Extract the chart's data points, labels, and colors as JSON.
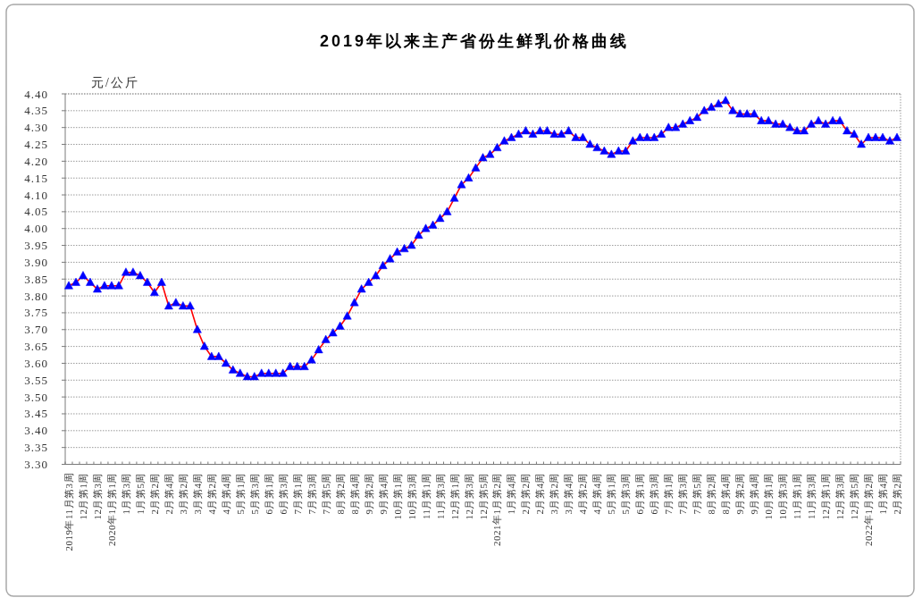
{
  "chart_data": {
    "type": "line",
    "title": "2019年以来主产省份生鲜乳价格曲线",
    "ylabel": "元/公斤",
    "categories": [
      "2019年11月第3周",
      null,
      "12月第1周",
      null,
      "12月第3周",
      null,
      "2020年1月第1周",
      null,
      "1月第3周",
      null,
      "1月第5周",
      null,
      "2月第2周",
      null,
      "2月第4周",
      null,
      "3月第2周",
      null,
      "3月第4周",
      null,
      "4月第2周",
      null,
      "4月第4周",
      null,
      "5月第1周",
      null,
      "5月第3周",
      null,
      "6月第1周",
      null,
      "6月第3周",
      null,
      "7月第1周",
      null,
      "7月第3周",
      null,
      "7月第5周",
      null,
      "8月第2周",
      null,
      "8月第4周",
      null,
      "9月第2周",
      null,
      "9月第4周",
      null,
      "10月第1周",
      null,
      "10月第3周",
      null,
      "11月第1周",
      null,
      "11月第3周",
      null,
      "12月第1周",
      null,
      "12月第3周",
      null,
      "12月第5周",
      null,
      "2021年1月第2周",
      null,
      "1月第4周",
      null,
      "2月第2周",
      null,
      "2月第4周",
      null,
      "3月第2周",
      null,
      "3月第4周",
      null,
      "4月第2周",
      null,
      "4月第4周",
      null,
      "5月第1周",
      null,
      "5月第3周",
      null,
      "6月第1周",
      null,
      "6月第3周",
      null,
      "7月第1周",
      null,
      "7月第3周",
      null,
      "7月第5周",
      null,
      "8月第2周",
      null,
      "8月第4周",
      null,
      "9月第2周",
      null,
      "9月第4周",
      null,
      "10月第1周",
      null,
      "10月第3周",
      null,
      "11月第1周",
      null,
      "11月第3周",
      null,
      "12月第1周",
      null,
      "12月第3周",
      null,
      "12月第5周",
      null,
      "2022年1月第2周",
      null,
      "1月第4周",
      null,
      "2月第2周"
    ],
    "series": [
      {
        "color": "#ff0000",
        "colors": [
          "#0000ff",
          "#0000ff",
          "#0000ff",
          "#0000ff",
          "#0000ff",
          "#0000ff",
          "#0000ff",
          "#0000ff",
          "#0000ff",
          "#0000ff",
          "#0000ff",
          "#0000ff",
          "#0000ff",
          "#0000ff",
          "#0000ff",
          "#0000ff",
          "#0000ff",
          "#0000ff",
          "#0000ff",
          "#0000ff",
          "#0000ff",
          "#0000ff",
          "#0000ff",
          "#0000ff",
          "#0000ff",
          "#0000ff",
          "#0000ff",
          "#0000ff",
          "#0000ff",
          "#0000ff",
          "#0000ff",
          "#0000ff",
          "#0000ff",
          "#0000ff",
          "#0000ff",
          "#0000ff",
          "#0000ff",
          "#0000ff",
          "#0000ff",
          "#0000ff",
          "#0000ff",
          "#0000ff",
          "#0000ff",
          "#0000ff",
          "#0000ff",
          "#0000ff",
          "#0000ff",
          "#0000ff",
          "#0000ff",
          "#0000ff",
          "#0000ff",
          "#0000ff",
          "#0000ff",
          "#0000ff",
          "#0000ff",
          "#0000ff",
          "#0000ff",
          "#0000ff",
          "#0000ff",
          "#0000ff",
          "#0000ff",
          "#0000ff",
          "#0000ff",
          "#0000ff",
          "#0000ff",
          "#0000ff",
          "#0000ff",
          "#0000ff",
          "#0000ff",
          "#0000ff",
          "#0000ff",
          "#0000ff",
          "#0000ff",
          "#0000ff",
          "#0000ff",
          "#0000ff",
          "#0000ff",
          "#0000ff",
          "#0000ff",
          "#0000ff",
          "#0000ff",
          "#0000ff",
          "#0000ff",
          "#0000ff",
          "#0000ff",
          "#0000ff",
          "#0000ff",
          "#0000ff",
          "#0000ff",
          "#0000ff",
          "#0000ff",
          "#0000ff",
          "#0000ff",
          "#0000ff",
          "#0000ff",
          "#0000ff",
          "#0000ff",
          "#0000ff",
          "#0000ff",
          "#0000ff",
          "#0000ff",
          "#0000ff",
          "#0000ff",
          "#0000ff",
          "#0000ff",
          "#0000ff",
          "#0000ff",
          "#0000ff",
          "#0000ff",
          "#0000ff",
          "#0000ff",
          "#0000ff",
          "#0000ff",
          "#0000ff",
          "#0000ff",
          "#0000ff",
          "#0000ff"
        ],
        "values": [
          3.83,
          3.84,
          3.86,
          3.84,
          3.82,
          3.83,
          3.83,
          3.83,
          3.87,
          3.87,
          3.86,
          3.84,
          3.81,
          3.84,
          3.77,
          3.78,
          3.77,
          3.77,
          3.7,
          3.65,
          3.62,
          3.62,
          3.6,
          3.58,
          3.57,
          3.56,
          3.56,
          3.57,
          3.57,
          3.57,
          3.57,
          3.59,
          3.59,
          3.59,
          3.61,
          3.64,
          3.67,
          3.69,
          3.71,
          3.74,
          3.78,
          3.82,
          3.84,
          3.86,
          3.89,
          3.91,
          3.93,
          3.94,
          3.95,
          3.98,
          4.0,
          4.01,
          4.03,
          4.05,
          4.09,
          4.13,
          4.15,
          4.18,
          4.21,
          4.22,
          4.24,
          4.26,
          4.27,
          4.28,
          4.29,
          4.28,
          4.29,
          4.29,
          4.28,
          4.28,
          4.29,
          4.27,
          4.27,
          4.25,
          4.24,
          4.23,
          4.22,
          4.23,
          4.23,
          4.26,
          4.27,
          4.27,
          4.27,
          4.28,
          4.3,
          4.3,
          4.31,
          4.32,
          4.33,
          4.35,
          4.36,
          4.37,
          4.38,
          4.35,
          4.34,
          4.34,
          4.34,
          4.32,
          4.32,
          4.31,
          4.31,
          4.3,
          4.29,
          4.29,
          4.31,
          4.32,
          4.31,
          4.32,
          4.32,
          4.29,
          4.28,
          4.25,
          4.27,
          4.27,
          4.27,
          4.26,
          4.27
        ]
      }
    ],
    "ylim": [
      3.3,
      4.4
    ],
    "yticks": [
      {
        "value": 3.3,
        "label": "3.30"
      },
      {
        "value": 3.35,
        "label": "3.35"
      },
      {
        "value": 3.4,
        "label": "3.40"
      },
      {
        "value": 3.45,
        "label": "3.45"
      },
      {
        "value": 3.5,
        "label": "3.50"
      },
      {
        "value": 3.55,
        "label": "3.55"
      },
      {
        "value": 3.6,
        "label": "3.60"
      },
      {
        "value": 3.65,
        "label": "3.65"
      },
      {
        "value": 3.7,
        "label": "3.70"
      },
      {
        "value": 3.75,
        "label": "3.75"
      },
      {
        "value": 3.8,
        "label": "3.80"
      },
      {
        "value": 3.85,
        "label": "3.85"
      },
      {
        "value": 3.9,
        "label": "3.90"
      },
      {
        "value": 3.95,
        "label": "3.95"
      },
      {
        "value": 4.0,
        "label": "4.00"
      },
      {
        "value": 4.05,
        "label": "4.05"
      },
      {
        "value": 4.1,
        "label": "4.10"
      },
      {
        "value": 4.15,
        "label": "4.15"
      },
      {
        "value": 4.2,
        "label": "4.20"
      },
      {
        "value": 4.25,
        "label": "4.25"
      },
      {
        "value": 4.3,
        "label": "4.30"
      },
      {
        "value": 4.35,
        "label": "4.35"
      },
      {
        "value": 4.4,
        "label": "4.40"
      }
    ],
    "grid": "y",
    "marker": "triangle",
    "line_style": "solid"
  }
}
